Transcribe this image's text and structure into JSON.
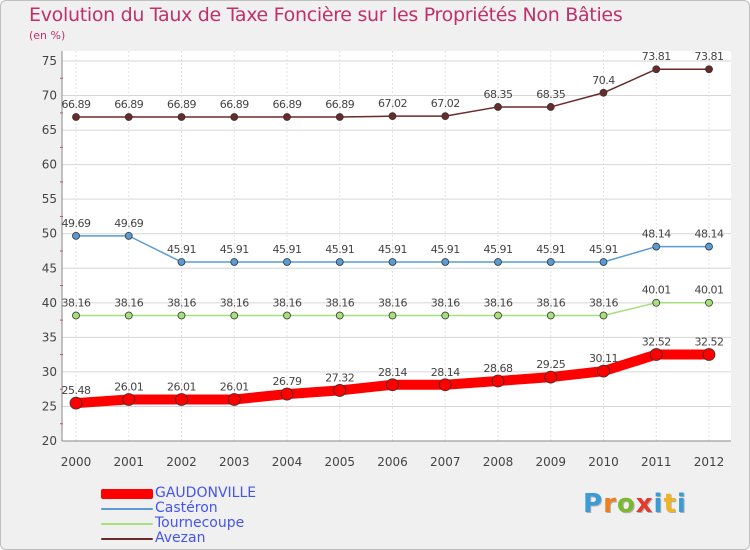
{
  "title": "Evolution du Taux de Taxe Foncière sur les Propriétés Non Bâties",
  "unit_label": "(en %)",
  "logo": {
    "text": "Proxiti",
    "colors": [
      "#3a9bd5",
      "#f07d1e",
      "#7cb82f",
      "#e23b2e",
      "#3a9bd5",
      "#f0b323",
      "#3a9bd5"
    ]
  },
  "chart_data": {
    "type": "line",
    "title": "Evolution du Taux de Taxe Foncière sur les Propriétés Non Bâties",
    "ylabel": "(en %)",
    "xlabel": "",
    "ylim": [
      20,
      75
    ],
    "yticks": [
      "20",
      "25",
      "30",
      "35",
      "40",
      "45",
      "50",
      "55",
      "60",
      "65",
      "70",
      "75"
    ],
    "categories": [
      "2000",
      "2001",
      "2002",
      "2003",
      "2004",
      "2005",
      "2006",
      "2007",
      "2008",
      "2009",
      "2010",
      "2011",
      "2012"
    ],
    "grid": true,
    "legend_position": "bottom-left",
    "series": [
      {
        "name": "GAUDONVILLE",
        "color": "#ff0000",
        "legend_text_color": "#4455ee",
        "bold": true,
        "values": [
          25.48,
          26.01,
          26.01,
          26.01,
          26.79,
          27.32,
          28.14,
          28.14,
          28.68,
          29.25,
          30.11,
          32.52,
          32.52
        ],
        "labels": [
          "25.48",
          "26.01",
          "26.01",
          "26.01",
          "26.79",
          "27.32",
          "28.14",
          "28.14",
          "28.68",
          "29.25",
          "30.11",
          "32.52",
          "32.52"
        ]
      },
      {
        "name": "Castéron",
        "color": "#5b9bd5",
        "legend_text_color": "#4455ee",
        "bold": false,
        "values": [
          49.69,
          49.69,
          45.91,
          45.91,
          45.91,
          45.91,
          45.91,
          45.91,
          45.91,
          45.91,
          45.91,
          48.14,
          48.14
        ],
        "labels": [
          "49.69",
          "49.69",
          "45.91",
          "45.91",
          "45.91",
          "45.91",
          "45.91",
          "45.91",
          "45.91",
          "45.91",
          "45.91",
          "48.14",
          "48.14"
        ]
      },
      {
        "name": "Tournecoupe",
        "color": "#a6e07a",
        "legend_text_color": "#4455ee",
        "bold": false,
        "values": [
          38.16,
          38.16,
          38.16,
          38.16,
          38.16,
          38.16,
          38.16,
          38.16,
          38.16,
          38.16,
          38.16,
          40.01,
          40.01
        ],
        "labels": [
          "38.16",
          "38.16",
          "38.16",
          "38.16",
          "38.16",
          "38.16",
          "38.16",
          "38.16",
          "38.16",
          "38.16",
          "38.16",
          "40.01",
          "40.01"
        ]
      },
      {
        "name": "Avezan",
        "color": "#6b2a2a",
        "legend_text_color": "#4455ee",
        "bold": false,
        "values": [
          66.89,
          66.89,
          66.89,
          66.89,
          66.89,
          66.89,
          67.02,
          67.02,
          68.35,
          68.35,
          70.4,
          73.81,
          73.81
        ],
        "labels": [
          "66.89",
          "66.89",
          "66.89",
          "66.89",
          "66.89",
          "66.89",
          "67.02",
          "67.02",
          "68.35",
          "68.35",
          "70.4",
          "73.81",
          "73.81"
        ]
      }
    ]
  }
}
